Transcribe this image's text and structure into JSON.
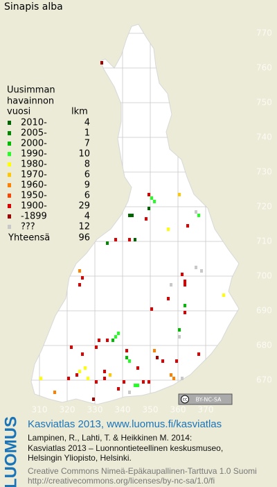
{
  "title": "Sinapis alba",
  "legend": {
    "heading": [
      "Uusimman",
      "havainnon",
      "vuosi"
    ],
    "count_heading": "lkm",
    "entries": [
      {
        "label": "2010-",
        "count": 4,
        "color": "#006400"
      },
      {
        "label": "2005-",
        "count": 1,
        "color": "#008800"
      },
      {
        "label": "2000-",
        "count": 7,
        "color": "#00bb00"
      },
      {
        "label": "1990-",
        "count": 10,
        "color": "#22ff22"
      },
      {
        "label": "1980-",
        "count": 8,
        "color": "#ffff00"
      },
      {
        "label": "1970-",
        "count": 6,
        "color": "#ffc800"
      },
      {
        "label": "1960-",
        "count": 9,
        "color": "#ff7f00"
      },
      {
        "label": "1950-",
        "count": 6,
        "color": "#ff4400"
      },
      {
        "label": "1900-",
        "count": 29,
        "color": "#dd0000"
      },
      {
        "label": "-1899",
        "count": 4,
        "color": "#a00000"
      },
      {
        "label": "???",
        "count": 12,
        "color": "#c8c8c8"
      }
    ],
    "total_label": "Yhteensä",
    "total": 96
  },
  "grid": {
    "xlim": [
      302,
      380
    ],
    "ylim": [
      662,
      779
    ],
    "xticks": [
      310,
      320,
      330,
      340,
      350,
      360,
      370
    ],
    "yticks": [
      670,
      680,
      690,
      700,
      710,
      720,
      730,
      740,
      750,
      760,
      770
    ]
  },
  "records": [
    {
      "x": 332,
      "y": 761,
      "period": 9
    },
    {
      "x": 349,
      "y": 723,
      "period": 8
    },
    {
      "x": 350,
      "y": 722,
      "period": 3
    },
    {
      "x": 351,
      "y": 721,
      "period": 3
    },
    {
      "x": 349,
      "y": 719,
      "period": 0
    },
    {
      "x": 342,
      "y": 717,
      "period": 0
    },
    {
      "x": 343,
      "y": 717,
      "period": 0
    },
    {
      "x": 360,
      "y": 723,
      "period": 5
    },
    {
      "x": 366,
      "y": 718,
      "period": 10
    },
    {
      "x": 367,
      "y": 717,
      "period": 3
    },
    {
      "x": 363,
      "y": 714,
      "period": 8
    },
    {
      "x": 356,
      "y": 713,
      "period": 4
    },
    {
      "x": 348,
      "y": 716,
      "period": 8
    },
    {
      "x": 337,
      "y": 710,
      "period": 8
    },
    {
      "x": 342,
      "y": 710,
      "period": 8
    },
    {
      "x": 344,
      "y": 710,
      "period": 0
    },
    {
      "x": 334,
      "y": 709,
      "period": 1
    },
    {
      "x": 324,
      "y": 701,
      "period": 6
    },
    {
      "x": 325,
      "y": 699,
      "period": 8
    },
    {
      "x": 324,
      "y": 697,
      "period": 8
    },
    {
      "x": 361,
      "y": 700,
      "period": 8
    },
    {
      "x": 362,
      "y": 698,
      "period": 8
    },
    {
      "x": 362,
      "y": 697,
      "period": 8
    },
    {
      "x": 366,
      "y": 702,
      "period": 10
    },
    {
      "x": 368,
      "y": 701,
      "period": 10
    },
    {
      "x": 357,
      "y": 697,
      "period": 10
    },
    {
      "x": 376,
      "y": 694,
      "period": 4
    },
    {
      "x": 350,
      "y": 690,
      "period": 8
    },
    {
      "x": 356,
      "y": 693,
      "period": 8
    },
    {
      "x": 362,
      "y": 691,
      "period": 2
    },
    {
      "x": 362,
      "y": 689,
      "period": 8
    },
    {
      "x": 360,
      "y": 684,
      "period": 2
    },
    {
      "x": 360,
      "y": 682,
      "period": 10
    },
    {
      "x": 334,
      "y": 681,
      "period": 8
    },
    {
      "x": 331,
      "y": 681,
      "period": 8
    },
    {
      "x": 337,
      "y": 682,
      "period": 3
    },
    {
      "x": 338,
      "y": 683,
      "period": 3
    },
    {
      "x": 336,
      "y": 681,
      "period": 2
    },
    {
      "x": 321,
      "y": 679,
      "period": 8
    },
    {
      "x": 330,
      "y": 679,
      "period": 8
    },
    {
      "x": 325,
      "y": 677,
      "period": 8
    },
    {
      "x": 341,
      "y": 678,
      "period": 8
    },
    {
      "x": 351,
      "y": 678,
      "period": 6
    },
    {
      "x": 367,
      "y": 677,
      "period": 8
    },
    {
      "x": 359,
      "y": 675,
      "period": 8
    },
    {
      "x": 341,
      "y": 676,
      "period": 2
    },
    {
      "x": 342,
      "y": 675,
      "period": 3
    },
    {
      "x": 345,
      "y": 673,
      "period": 8
    },
    {
      "x": 354,
      "y": 675,
      "period": 8
    },
    {
      "x": 333,
      "y": 672,
      "period": 8
    },
    {
      "x": 326,
      "y": 673,
      "period": 4
    },
    {
      "x": 324,
      "y": 672,
      "period": 4
    },
    {
      "x": 323,
      "y": 671,
      "period": 8
    },
    {
      "x": 320,
      "y": 670,
      "period": 8
    },
    {
      "x": 310,
      "y": 670,
      "period": 4
    },
    {
      "x": 315,
      "y": 666,
      "period": 6
    },
    {
      "x": 329,
      "y": 664,
      "period": 9
    },
    {
      "x": 344,
      "y": 668,
      "period": 3
    },
    {
      "x": 345,
      "y": 668,
      "period": 3
    },
    {
      "x": 347,
      "y": 669,
      "period": 8
    },
    {
      "x": 349,
      "y": 669,
      "period": 8
    },
    {
      "x": 357,
      "y": 671,
      "period": 6
    },
    {
      "x": 358,
      "y": 670,
      "period": 6
    },
    {
      "x": 361,
      "y": 670,
      "period": 10
    },
    {
      "x": 340,
      "y": 669,
      "period": 8
    },
    {
      "x": 338,
      "y": 667,
      "period": 8
    },
    {
      "x": 342,
      "y": 666,
      "period": 10
    },
    {
      "x": 333,
      "y": 670,
      "period": 8
    },
    {
      "x": 330,
      "y": 669,
      "period": 8
    },
    {
      "x": 327,
      "y": 670,
      "period": 4
    },
    {
      "x": 335,
      "y": 671,
      "period": 5
    },
    {
      "x": 352,
      "y": 676,
      "period": 9
    }
  ],
  "license_badge": {
    "icon": "cc",
    "text": "BY-NC-SA"
  },
  "footer": {
    "logo": "LUOMUS",
    "link": "Kasviatlas 2013, www.luomus.fi/kasviatlas",
    "citation": [
      "Lampinen, R., Lahti, T. & Heikkinen M. 2014:",
      "Kasviatlas 2013 – Luonnontieteellinen keskusmuseo,",
      "Helsingin Yliopisto, Helsinki."
    ],
    "license": [
      "Creative Commons Nimeä-Epäkaupallinen-Tarttuva 1.0 Suomi",
      "http://creativecommons.org/licenses/by-nc-sa/1.0/fi"
    ]
  }
}
